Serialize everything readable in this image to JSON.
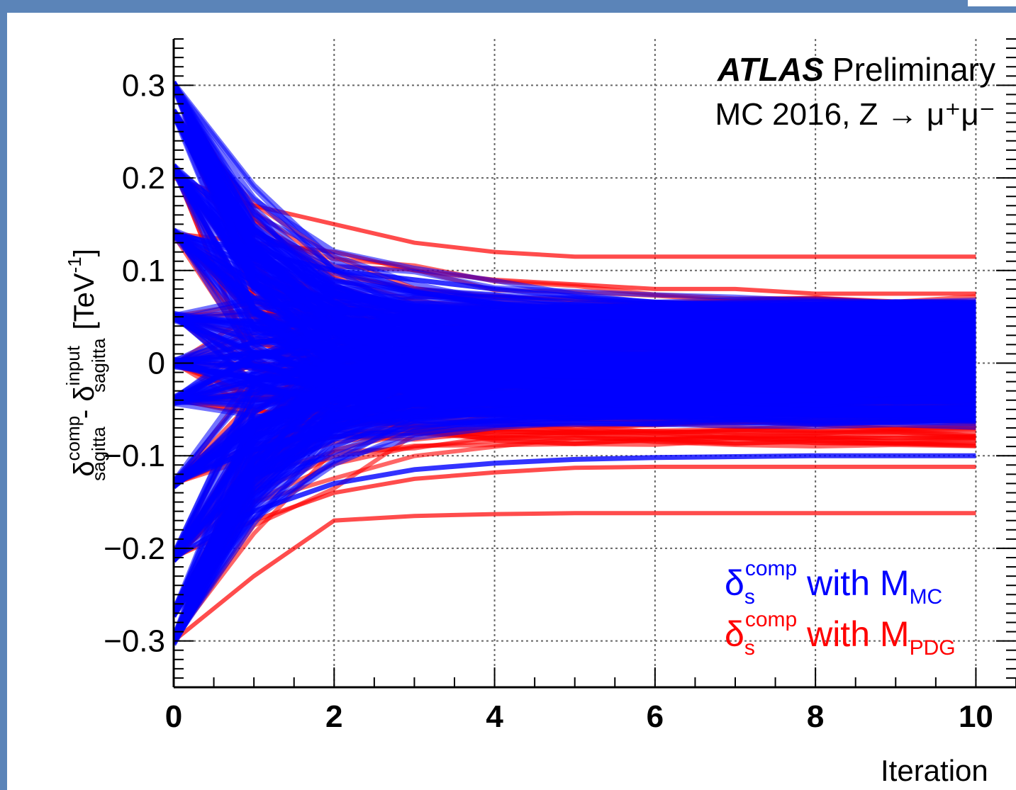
{
  "chart_data": {
    "type": "line",
    "title": "",
    "experiment_label": "ATLAS",
    "experiment_sublabel": "Preliminary",
    "dataset_label": "MC 2016, Z → μ⁺μ⁻",
    "xlabel": "Iteration",
    "ylabel": "δ_sagitta^comp - δ_sagitta^input [TeV⁻¹]",
    "ylabel_parts": {
      "delta": "δ",
      "sup_comp": "comp",
      "sub_sagitta": "sagitta",
      "minus": " - ",
      "sup_input": "input",
      "unit_open": "[TeV",
      "unit_exp": "-1",
      "unit_close": "]"
    },
    "xlim": [
      0,
      10.5
    ],
    "ylim": [
      -0.35,
      0.35
    ],
    "x_ticks": [
      0,
      2,
      4,
      6,
      8,
      10
    ],
    "x_tick_labels": [
      "0",
      "2",
      "4",
      "6",
      "8",
      "10"
    ],
    "y_ticks": [
      -0.3,
      -0.2,
      -0.1,
      0,
      0.1,
      0.2,
      0.3
    ],
    "y_tick_labels": [
      "−0.3",
      "−0.2",
      "−0.1",
      "0",
      "0.1",
      "0.2",
      "0.3"
    ],
    "grid": true,
    "legend_position": "bottom-right",
    "x": [
      0,
      1,
      2,
      3,
      4,
      5,
      6,
      7,
      8,
      9,
      10
    ],
    "starting_values": [
      0.3,
      0.27,
      0.21,
      0.14,
      0.05,
      0.0,
      -0.04,
      -0.13,
      -0.21,
      -0.27,
      -0.3
    ],
    "series": [
      {
        "name": "δ_s^comp with M_MC",
        "legend_parts": {
          "delta": "δ",
          "sub": "s",
          "sup": "comp",
          "mid": " with M",
          "msub": "MC"
        },
        "color": "#0000ff",
        "converged_band": [
          -0.065,
          0.065
        ],
        "outlier_limits": {
          "upper": 0.06,
          "lower": -0.1
        }
      },
      {
        "name": "δ_s^comp with M_PDG",
        "legend_parts": {
          "delta": "δ",
          "sub": "s",
          "sup": "comp",
          "mid": " with M",
          "msub": "PDG"
        },
        "color": "#ff0000",
        "converged_band": [
          -0.09,
          0.075
        ],
        "outliers": [
          {
            "label": "upper",
            "values": [
              0.2,
              0.17,
              0.15,
              0.13,
              0.12,
              0.115,
              0.115,
              0.115,
              0.115,
              0.115,
              0.115
            ]
          },
          {
            "label": "upper-2",
            "values": [
              0.14,
              0.13,
              0.12,
              0.1,
              0.09,
              0.085,
              0.08,
              0.08,
              0.075,
              0.075,
              0.075
            ]
          },
          {
            "label": "lower",
            "values": [
              -0.3,
              -0.23,
              -0.17,
              -0.165,
              -0.163,
              -0.162,
              -0.162,
              -0.162,
              -0.162,
              -0.162,
              -0.162
            ]
          },
          {
            "label": "lower-2",
            "values": [
              -0.21,
              -0.17,
              -0.14,
              -0.125,
              -0.118,
              -0.113,
              -0.112,
              -0.112,
              -0.112,
              -0.112,
              -0.112
            ]
          }
        ]
      }
    ]
  }
}
